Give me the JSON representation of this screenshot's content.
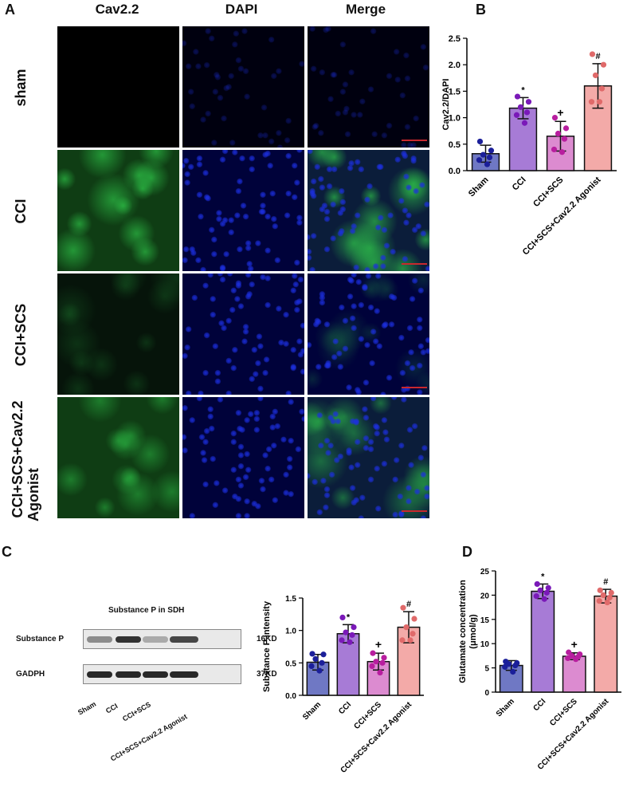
{
  "panels": {
    "a": "A",
    "b": "B",
    "c": "C",
    "d": "D"
  },
  "panel_a": {
    "columns": [
      "Cav2.2",
      "DAPI",
      "Merge"
    ],
    "rows": [
      "sham",
      "CCI",
      "CCI+SCS",
      "CCI+SCS+Cav2.2 Agonist"
    ],
    "row_lines": [
      [
        "sham"
      ],
      [
        "CCI"
      ],
      [
        "CCI+SCS"
      ],
      [
        "CCI+SCS+Cav2.2",
        "Agonist"
      ]
    ],
    "green_intensity": [
      0.04,
      0.85,
      0.22,
      0.6
    ],
    "colors": {
      "green": "#2fc94a",
      "blue": "#1c2fe0",
      "scale_bar": "#c8282e"
    }
  },
  "panel_c_blot": {
    "title": "Substance P in SDH",
    "rows": [
      {
        "label": "Substance P",
        "size": "16KD",
        "band_darkness": [
          0.45,
          0.9,
          0.3,
          0.8
        ]
      },
      {
        "label": "GADPH",
        "size": "37KD",
        "band_darkness": [
          0.95,
          0.95,
          0.95,
          0.95
        ]
      }
    ],
    "lanes": [
      "Sham",
      "CCI",
      "CCI+SCS",
      "CCI+SCS+Cav2.2 Agonist"
    ]
  },
  "chart_data": [
    {
      "id": "B",
      "type": "bar",
      "categories": [
        "Sham",
        "CCI",
        "CCI+SCS",
        "CCI+SCS+Cav2.2 Agonist"
      ],
      "values": [
        0.32,
        1.18,
        0.65,
        1.6
      ],
      "errors": [
        0.16,
        0.2,
        0.28,
        0.42
      ],
      "points": [
        [
          0.55,
          0.38,
          0.3,
          0.25,
          0.2,
          0.12
        ],
        [
          1.4,
          1.3,
          1.2,
          1.1,
          1.05,
          0.9
        ],
        [
          1.0,
          0.8,
          0.7,
          0.6,
          0.4,
          0.35
        ],
        [
          2.2,
          2.0,
          1.8,
          1.55,
          1.3,
          1.3
        ]
      ],
      "annotations": [
        "",
        "*",
        "+",
        "#"
      ],
      "ylabel": "Cav2.2/DAPI",
      "ylim": [
        0,
        2.5
      ],
      "yticks": [
        "0.0",
        "0.5",
        "1.0",
        "1.5",
        "2.0",
        "2.5"
      ],
      "ytick_values": [
        0,
        0.5,
        1.0,
        1.5,
        2.0,
        2.5
      ]
    },
    {
      "id": "C",
      "type": "bar",
      "categories": [
        "Sham",
        "CCI",
        "CCI+SCS",
        "CCI+SCS+Cav2.2 Agonist"
      ],
      "values": [
        0.51,
        0.95,
        0.52,
        1.05
      ],
      "errors": [
        0.12,
        0.14,
        0.13,
        0.24
      ],
      "points": [
        [
          0.64,
          0.63,
          0.56,
          0.5,
          0.45,
          0.38
        ],
        [
          1.2,
          1.05,
          0.97,
          0.93,
          0.85,
          0.82
        ],
        [
          0.65,
          0.58,
          0.52,
          0.5,
          0.45,
          0.35
        ],
        [
          1.35,
          1.18,
          1.05,
          0.95,
          0.85,
          0.85
        ]
      ],
      "annotations": [
        "",
        "*",
        "+",
        "#"
      ],
      "ylabel": "Substance P intensity",
      "ylim": [
        0,
        1.5
      ],
      "yticks": [
        "0.0",
        "0.5",
        "1.0",
        "1.5"
      ],
      "ytick_values": [
        0,
        0.5,
        1.0,
        1.5
      ]
    },
    {
      "id": "D",
      "type": "bar",
      "categories": [
        "Sham",
        "CCI",
        "CCI+SCS",
        "CCI+SCS+Cav2.2 Agonist"
      ],
      "values": [
        5.5,
        20.8,
        7.4,
        19.8
      ],
      "errors": [
        1.0,
        1.5,
        0.7,
        1.4
      ],
      "points": [
        [
          6.3,
          6.0,
          5.8,
          5.5,
          5.2,
          4.2
        ],
        [
          22.3,
          21.5,
          21.0,
          20.5,
          19.8,
          19.2
        ],
        [
          8.2,
          7.8,
          7.5,
          7.3,
          7.0,
          6.8
        ],
        [
          21.0,
          20.5,
          20.0,
          19.5,
          18.8,
          18.5
        ]
      ],
      "annotations": [
        "",
        "*",
        "+",
        "#"
      ],
      "ylabel": "Glutamate concentration (μmol/g)",
      "ylabel_lines": [
        "Glutamate concentration",
        "(μmol/g)"
      ],
      "ylim": [
        0,
        25
      ],
      "yticks": [
        "0",
        "5",
        "10",
        "15",
        "20",
        "25"
      ],
      "ytick_values": [
        0,
        5,
        10,
        15,
        20,
        25
      ]
    }
  ],
  "colors": {
    "bar_fills": [
      "#6f78c4",
      "#a77bd6",
      "#dc8bd0",
      "#f3aaa8"
    ],
    "dot_colors": [
      "#1b1f9a",
      "#7a19b8",
      "#b81e9f",
      "#e06a6a"
    ],
    "edge": "#111111"
  }
}
